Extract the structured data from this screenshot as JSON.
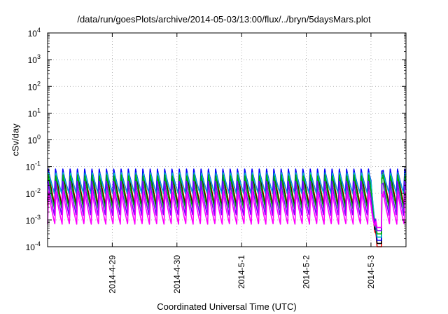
{
  "chart_data": {
    "type": "line",
    "title": "/data/run/goesPlots/archive/2014-05-03/13:00/flux/../bryn/5daysMars.plot",
    "xlabel": "Coordinated Universal Time (UTC)",
    "ylabel": "cSv/day",
    "yscale": "log",
    "ylim": [
      0.0001,
      10000
    ],
    "y_ticks": [
      {
        "base": "10",
        "exp": "-4"
      },
      {
        "base": "10",
        "exp": "-3"
      },
      {
        "base": "10",
        "exp": "-2"
      },
      {
        "base": "10",
        "exp": "-1"
      },
      {
        "base": "10",
        "exp": "0"
      },
      {
        "base": "10",
        "exp": "1"
      },
      {
        "base": "10",
        "exp": "2"
      },
      {
        "base": "10",
        "exp": "3"
      },
      {
        "base": "10",
        "exp": "4"
      }
    ],
    "xlim": [
      "2014-04-28 00:00",
      "2014-05-03 13:00"
    ],
    "x_ticks": [
      "2014-4-29",
      "2014-4-30",
      "2014-5-1",
      "2014-5-2",
      "2014-5-3"
    ],
    "grid": true,
    "series": [
      {
        "color": "#ff0000",
        "peak": 0.07,
        "trough": 0.0035
      },
      {
        "color": "#000000",
        "peak": 0.065,
        "trough": 0.003
      },
      {
        "color": "#0000ff",
        "peak": 0.085,
        "trough": 0.01
      },
      {
        "color": "#00c0c0",
        "peak": 0.06,
        "trough": 0.009
      },
      {
        "color": "#00b000",
        "peak": 0.05,
        "trough": 0.0025
      },
      {
        "color": "#8000ff",
        "peak": 0.03,
        "trough": 0.0015
      },
      {
        "color": "#ff00ff",
        "peak": 0.012,
        "trough": 0.0007
      }
    ],
    "pattern": {
      "oscillation_period_hours": 2.7,
      "dip": {
        "start": "2014-05-03 00:00",
        "minimum": "2014-05-03 02:30",
        "recovery": "2014-05-03 04:00",
        "min_value": 0.0001
      }
    }
  }
}
